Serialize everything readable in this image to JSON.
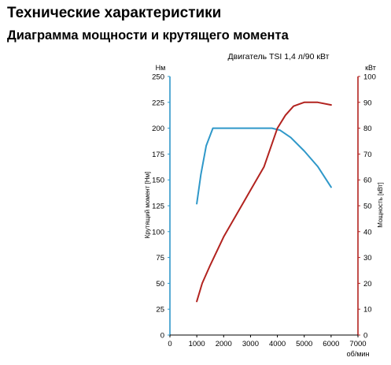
{
  "header": {
    "title": "Технические характеристики",
    "subtitle": "Диаграмма мощности и крутящего момента"
  },
  "chart_data": {
    "type": "line",
    "title": "Двигатель TSI 1,4 л/90 кВт",
    "xlabel": "об/мин",
    "ylabel_left": "Крутящий момент [Нм]",
    "ylabel_right": "Мощность [кВт]",
    "unit_left": "Нм",
    "unit_right": "кВт",
    "xlim": [
      0,
      7000
    ],
    "ylim_left": [
      0,
      250
    ],
    "ylim_right": [
      0,
      100
    ],
    "x_ticks": [
      "0",
      "1000",
      "2000",
      "3000",
      "4000",
      "5000",
      "6000",
      "7000"
    ],
    "y_left_ticks": [
      "0",
      "25",
      "50",
      "75",
      "100",
      "125",
      "150",
      "175",
      "200",
      "225",
      "250"
    ],
    "y_right_ticks": [
      "0",
      "10",
      "20",
      "30",
      "40",
      "50",
      "60",
      "70",
      "80",
      "90",
      "100"
    ],
    "grid": false,
    "series": [
      {
        "axis": "left",
        "color": "#2f98c9",
        "points": [
          [
            1000,
            127
          ],
          [
            1150,
            155
          ],
          [
            1350,
            183
          ],
          [
            1600,
            200
          ],
          [
            2000,
            200
          ],
          [
            3000,
            200
          ],
          [
            3800,
            200
          ],
          [
            4100,
            198
          ],
          [
            4500,
            191
          ],
          [
            5000,
            178
          ],
          [
            5500,
            163
          ],
          [
            6000,
            143
          ]
        ]
      },
      {
        "axis": "right",
        "color": "#b2231f",
        "points": [
          [
            1000,
            13
          ],
          [
            1200,
            20
          ],
          [
            1500,
            27
          ],
          [
            2000,
            38
          ],
          [
            2500,
            47
          ],
          [
            3000,
            56
          ],
          [
            3500,
            65
          ],
          [
            4000,
            80
          ],
          [
            4300,
            85
          ],
          [
            4600,
            88.5
          ],
          [
            5000,
            90
          ],
          [
            5500,
            90
          ],
          [
            6000,
            89
          ]
        ]
      }
    ]
  }
}
